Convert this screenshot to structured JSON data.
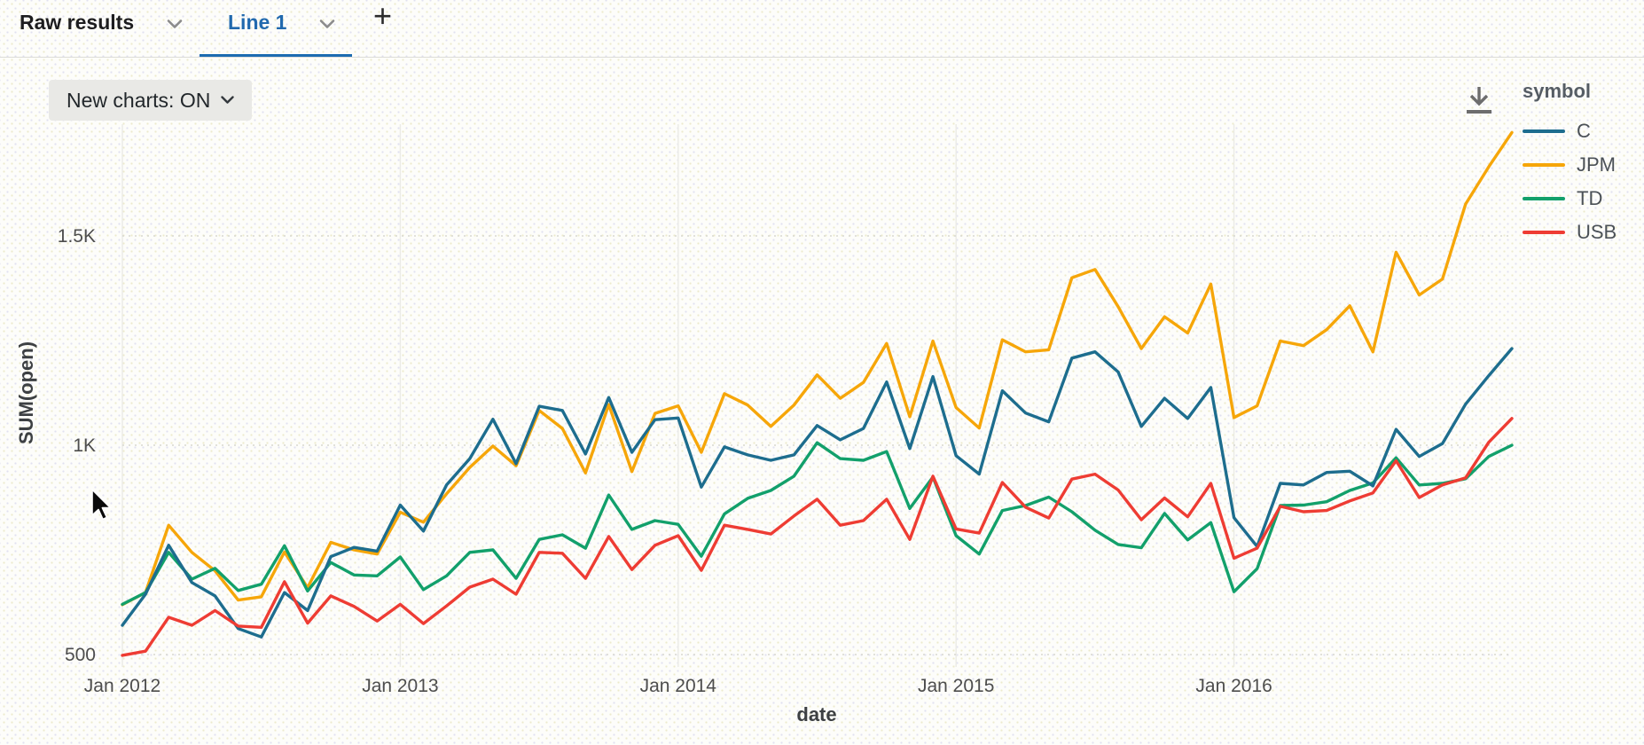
{
  "tabs": {
    "raw_results_label": "Raw results",
    "line1_label": "Line 1",
    "add_tab_label": "+"
  },
  "toolbar": {
    "new_charts_label": "New charts: ON"
  },
  "icons": {
    "tab_chevron": "chevron-down",
    "pill_chevron": "chevron-down",
    "download": "arrow-down-to-line",
    "cursor": "arrow-pointer"
  },
  "ui_colors": {
    "active_tab": "#2169ae",
    "tab_underline": "#1c6bb0",
    "pill_bg": "#e9e9e6",
    "divider": "#dcdcd7",
    "tick_text": "#4d4d4d",
    "grid_vertical": "#ebebe6",
    "grid_horizontal": "#d8d8d0"
  },
  "chart_data": {
    "type": "line",
    "xlabel": "date",
    "ylabel": "SUM(open)",
    "legend_title": "symbol",
    "legend_position": "right",
    "x_start": "2012-01",
    "x_end": "2017-01",
    "x_unit": "month",
    "x_tick_labels": [
      "Jan 2012",
      "Jan 2013",
      "Jan 2014",
      "Jan 2015",
      "Jan 2016"
    ],
    "x_tick_month_index": [
      0,
      12,
      24,
      36,
      48
    ],
    "y_ticks": [
      {
        "value": 500,
        "label": "500"
      },
      {
        "value": 1000,
        "label": "1K"
      },
      {
        "value": 1500,
        "label": "1.5K"
      }
    ],
    "ylim": [
      450,
      1800
    ],
    "grid": {
      "vertical": "solid",
      "horizontal": "dotted"
    },
    "series": [
      {
        "name": "C",
        "color": "#1d6d8e",
        "values": [
          570,
          644,
          761,
          672,
          640,
          562,
          542,
          648,
          605,
          734,
          756,
          747,
          857,
          795,
          905,
          968,
          1062,
          956,
          1093,
          1083,
          979,
          1114,
          983,
          1061,
          1065,
          900,
          996,
          977,
          964,
          977,
          1047,
          1013,
          1040,
          1151,
          992,
          1164,
          975,
          931,
          1130,
          1077,
          1056,
          1208,
          1223,
          1175,
          1045,
          1112,
          1064,
          1138,
          827,
          758,
          909,
          905,
          935,
          938,
          903,
          1038,
          973,
          1004,
          1098,
          1166,
          1231
        ]
      },
      {
        "name": "JPM",
        "color": "#f6a609",
        "values": [
          619,
          648,
          809,
          744,
          700,
          630,
          638,
          745,
          660,
          768,
          750,
          740,
          840,
          816,
          884,
          947,
          998,
          951,
          1083,
          1040,
          934,
          1097,
          937,
          1076,
          1094,
          983,
          1123,
          1096,
          1045,
          1096,
          1168,
          1112,
          1150,
          1243,
          1068,
          1249,
          1090,
          1041,
          1252,
          1223,
          1228,
          1400,
          1420,
          1331,
          1231,
          1307,
          1268,
          1385,
          1066,
          1094,
          1249,
          1238,
          1276,
          1333,
          1223,
          1461,
          1359,
          1397,
          1576,
          1665,
          1747
        ]
      },
      {
        "name": "TD",
        "color": "#12a06b",
        "values": [
          620,
          648,
          744,
          680,
          706,
          653,
          668,
          760,
          652,
          720,
          690,
          688,
          733,
          655,
          688,
          744,
          750,
          682,
          775,
          786,
          754,
          881,
          799,
          820,
          811,
          735,
          836,
          873,
          892,
          926,
          1006,
          968,
          964,
          985,
          849,
          924,
          784,
          740,
          844,
          856,
          876,
          841,
          797,
          763,
          755,
          837,
          774,
          815,
          650,
          705,
          856,
          857,
          865,
          892,
          910,
          970,
          905,
          909,
          920,
          973,
          1000
        ]
      },
      {
        "name": "USB",
        "color": "#ee3c33",
        "values": [
          498,
          508,
          589,
          570,
          605,
          568,
          565,
          674,
          575,
          640,
          615,
          580,
          620,
          574,
          616,
          661,
          680,
          644,
          744,
          742,
          682,
          782,
          703,
          761,
          784,
          701,
          809,
          799,
          788,
          831,
          871,
          809,
          820,
          871,
          775,
          926,
          800,
          790,
          911,
          852,
          826,
          919,
          931,
          893,
          822,
          874,
          829,
          909,
          730,
          754,
          854,
          841,
          844,
          867,
          886,
          963,
          875,
          905,
          922,
          1007,
          1064
        ]
      }
    ]
  }
}
